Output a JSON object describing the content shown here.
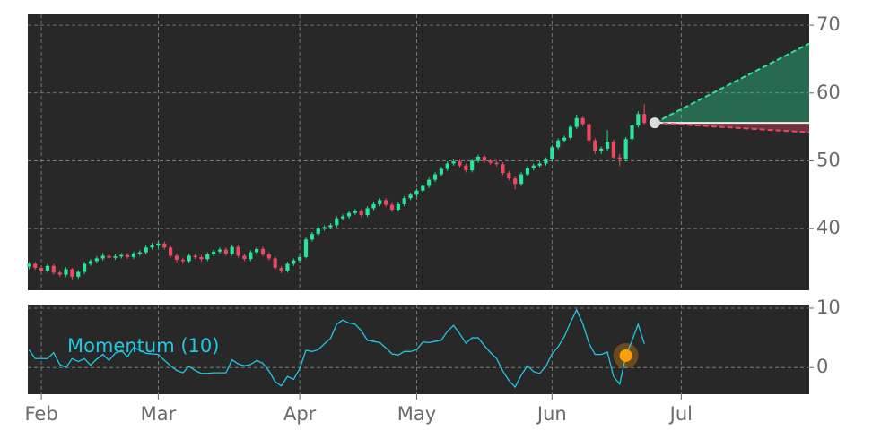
{
  "chart_data": {
    "type": "candlestick",
    "xlim": [
      -0.2,
      126.8
    ],
    "xticks": [
      {
        "value": 2,
        "label": "Feb"
      },
      {
        "value": 21,
        "label": "Mar"
      },
      {
        "value": 44,
        "label": "Apr"
      },
      {
        "value": 63,
        "label": "May"
      },
      {
        "value": 85,
        "label": "Jun"
      },
      {
        "value": 106,
        "label": "Jul"
      }
    ],
    "ylim": [
      30.9,
      71.6
    ],
    "yticks": [
      40,
      50,
      60,
      70
    ],
    "grid": true,
    "up_color": "#27e69a",
    "down_color": "#ec4863",
    "ohlc": [
      [
        34.4,
        35.1,
        34.0,
        34.8
      ],
      [
        34.8,
        35.1,
        33.9,
        34.2
      ],
      [
        34.2,
        34.5,
        33.5,
        33.8
      ],
      [
        33.8,
        34.8,
        33.5,
        34.5
      ],
      [
        34.5,
        34.8,
        33.2,
        33.5
      ],
      [
        33.5,
        33.8,
        32.9,
        33.2
      ],
      [
        33.2,
        34.3,
        32.9,
        34.0
      ],
      [
        34.0,
        34.2,
        32.5,
        32.9
      ],
      [
        32.9,
        33.9,
        32.6,
        33.6
      ],
      [
        33.6,
        35.1,
        33.3,
        34.8
      ],
      [
        34.8,
        35.5,
        34.5,
        35.2
      ],
      [
        35.2,
        35.9,
        34.9,
        35.6
      ],
      [
        35.6,
        36.4,
        35.3,
        36.0
      ],
      [
        36.0,
        36.3,
        35.4,
        35.7
      ],
      [
        35.7,
        36.2,
        35.4,
        35.9
      ],
      [
        35.9,
        36.4,
        35.6,
        36.1
      ],
      [
        36.1,
        36.4,
        35.5,
        35.8
      ],
      [
        35.8,
        36.6,
        35.5,
        36.3
      ],
      [
        36.3,
        36.8,
        36.0,
        36.5
      ],
      [
        36.5,
        37.6,
        36.2,
        37.2
      ],
      [
        37.2,
        37.9,
        36.9,
        37.5
      ],
      [
        37.5,
        38.2,
        37.2,
        37.8
      ],
      [
        37.8,
        38.1,
        36.9,
        37.2
      ],
      [
        37.2,
        37.5,
        35.7,
        36.0
      ],
      [
        36.0,
        36.3,
        35.0,
        35.4
      ],
      [
        35.4,
        35.7,
        34.8,
        35.2
      ],
      [
        35.2,
        36.3,
        34.9,
        36.0
      ],
      [
        36.0,
        36.3,
        35.5,
        35.8
      ],
      [
        35.8,
        36.1,
        35.1,
        35.5
      ],
      [
        35.5,
        36.5,
        35.2,
        36.2
      ],
      [
        36.2,
        36.9,
        35.9,
        36.6
      ],
      [
        36.6,
        37.2,
        36.3,
        36.9
      ],
      [
        36.9,
        37.2,
        36.0,
        36.3
      ],
      [
        36.3,
        37.6,
        36.0,
        37.3
      ],
      [
        37.3,
        37.6,
        35.7,
        36.0
      ],
      [
        36.0,
        36.3,
        35.2,
        35.5
      ],
      [
        35.5,
        36.8,
        35.2,
        36.5
      ],
      [
        36.5,
        37.3,
        36.2,
        37.0
      ],
      [
        37.0,
        37.3,
        35.9,
        36.2
      ],
      [
        36.2,
        36.5,
        35.3,
        35.6
      ],
      [
        35.6,
        35.9,
        33.9,
        34.2
      ],
      [
        34.2,
        34.5,
        33.4,
        33.8
      ],
      [
        33.8,
        35.1,
        33.5,
        34.8
      ],
      [
        34.8,
        35.6,
        34.5,
        35.3
      ],
      [
        35.3,
        36.1,
        35.0,
        35.8
      ],
      [
        35.8,
        38.7,
        35.6,
        38.4
      ],
      [
        38.4,
        39.5,
        38.1,
        39.2
      ],
      [
        39.2,
        40.3,
        38.9,
        40.0
      ],
      [
        40.0,
        40.5,
        39.7,
        40.2
      ],
      [
        40.2,
        40.8,
        39.9,
        40.5
      ],
      [
        40.5,
        41.8,
        40.2,
        41.5
      ],
      [
        41.5,
        42.1,
        41.2,
        41.8
      ],
      [
        41.8,
        42.6,
        41.5,
        42.3
      ],
      [
        42.3,
        42.9,
        42.0,
        42.6
      ],
      [
        42.6,
        42.9,
        41.7,
        42.0
      ],
      [
        42.0,
        43.3,
        41.7,
        43.0
      ],
      [
        43.0,
        43.9,
        42.7,
        43.6
      ],
      [
        43.6,
        44.5,
        43.3,
        44.2
      ],
      [
        44.2,
        44.5,
        43.2,
        43.5
      ],
      [
        43.5,
        43.8,
        42.5,
        42.8
      ],
      [
        42.8,
        43.9,
        42.5,
        43.6
      ],
      [
        43.6,
        44.8,
        43.3,
        44.5
      ],
      [
        44.5,
        45.3,
        44.2,
        45.0
      ],
      [
        45.0,
        45.9,
        44.7,
        45.6
      ],
      [
        45.6,
        46.6,
        45.3,
        46.3
      ],
      [
        46.3,
        47.5,
        46.0,
        47.2
      ],
      [
        47.2,
        48.3,
        46.9,
        48.0
      ],
      [
        48.0,
        49.1,
        47.7,
        48.8
      ],
      [
        48.8,
        49.9,
        48.5,
        49.6
      ],
      [
        49.6,
        50.2,
        49.3,
        49.9
      ],
      [
        49.9,
        50.2,
        49.0,
        49.3
      ],
      [
        49.3,
        49.6,
        48.3,
        48.6
      ],
      [
        48.6,
        50.3,
        48.3,
        50.0
      ],
      [
        50.0,
        50.9,
        49.7,
        50.6
      ],
      [
        50.6,
        50.9,
        49.7,
        50.0
      ],
      [
        50.0,
        50.3,
        49.4,
        49.7
      ],
      [
        49.7,
        50.0,
        49.2,
        49.5
      ],
      [
        49.5,
        49.8,
        47.9,
        48.2
      ],
      [
        48.2,
        48.5,
        47.1,
        47.4
      ],
      [
        47.4,
        47.7,
        45.8,
        46.6
      ],
      [
        46.6,
        48.3,
        46.3,
        48.0
      ],
      [
        48.0,
        49.2,
        47.7,
        48.9
      ],
      [
        48.9,
        49.6,
        48.6,
        49.3
      ],
      [
        49.3,
        49.9,
        49.0,
        49.6
      ],
      [
        49.6,
        50.5,
        49.3,
        50.2
      ],
      [
        50.2,
        52.3,
        49.9,
        52.0
      ],
      [
        52.0,
        53.3,
        51.7,
        53.0
      ],
      [
        53.0,
        53.7,
        52.7,
        53.4
      ],
      [
        53.4,
        55.3,
        53.1,
        55.0
      ],
      [
        55.0,
        56.8,
        54.7,
        56.3
      ],
      [
        56.3,
        56.6,
        55.1,
        55.4
      ],
      [
        55.4,
        55.7,
        52.5,
        53.0
      ],
      [
        53.0,
        53.3,
        51.0,
        51.5
      ],
      [
        51.5,
        52.1,
        51.0,
        51.8
      ],
      [
        51.8,
        54.5,
        51.5,
        52.8
      ],
      [
        52.8,
        53.1,
        50.2,
        50.5
      ],
      [
        50.5,
        51.0,
        49.2,
        50.2
      ],
      [
        50.2,
        53.5,
        49.9,
        53.2
      ],
      [
        53.2,
        55.5,
        52.9,
        55.2
      ],
      [
        55.2,
        57.3,
        54.9,
        56.9
      ],
      [
        56.9,
        58.4,
        55.3,
        55.6
      ]
    ],
    "forecast": {
      "x": [
        101.7,
        126.8
      ],
      "mid": [
        55.6,
        55.6
      ],
      "upper": [
        55.6,
        67.3
      ],
      "lower": [
        55.6,
        54.2
      ],
      "upper_color": "#27e69a",
      "lower_color": "#ec4863",
      "point_color": "#dddddd"
    },
    "momentum": {
      "name": "Momentum (10)",
      "color": "#1fc8e3",
      "ylim": [
        -4.5,
        10.6
      ],
      "yticks": [
        0,
        10
      ],
      "values": [
        3,
        1.5,
        1.5,
        1.5,
        2.5,
        0.5,
        0,
        1.5,
        1,
        1.5,
        0.4,
        1.4,
        2.2,
        1.2,
        2.4,
        2.9,
        1.8,
        3.4,
        2.9,
        2.4,
        2.3,
        2.2,
        1.2,
        0.3,
        -0.5,
        -0.9,
        0.2,
        -0.5,
        -1,
        -1,
        -0.9,
        -0.9,
        -0.9,
        1.3,
        0.6,
        0.3,
        0.5,
        1.2,
        0.7,
        -0.6,
        -2.4,
        -3.1,
        -1.5,
        -2,
        -0.2,
        2.9,
        2.7,
        3,
        4,
        4.9,
        7.3,
        8,
        7.5,
        7.3,
        6.2,
        4.6,
        4.4,
        4.2,
        3.3,
        2.3,
        2.1,
        2.7,
        2.7,
        3,
        4.3,
        4.2,
        4.4,
        4.6,
        6.1,
        7.1,
        5.7,
        4.1,
        5,
        5,
        3.7,
        2.5,
        1.5,
        -0.6,
        -2.2,
        -3.3,
        -1.3,
        0.3,
        -0.7,
        -1,
        0.2,
        2.3,
        3.5,
        5.2,
        7.6,
        9.7,
        7.4,
        4.1,
        2.2,
        2.2,
        2.6,
        -1.5,
        -2.8,
        2.0,
        4.5,
        7.3,
        4.0
      ],
      "highlight": {
        "x": 97,
        "value": 2.0,
        "color": "#ff9f0a"
      }
    }
  }
}
